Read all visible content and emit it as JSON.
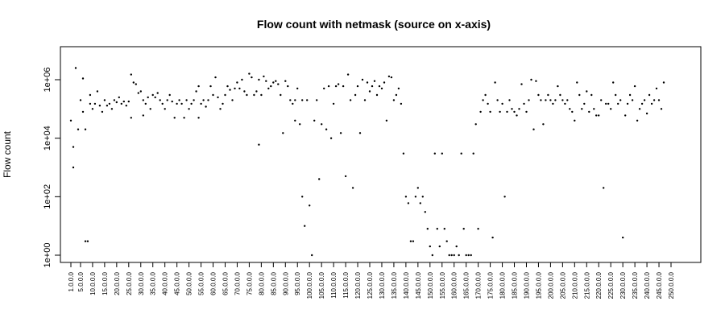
{
  "chart_data": {
    "type": "scatter",
    "title": "Flow count with netmask  (source on x-axis)",
    "xlabel": "",
    "ylabel": "Flow count",
    "y_scale": "log10",
    "ylim": [
      1,
      3000000
    ],
    "xlim": [
      0,
      255
    ],
    "x_ticks": [
      1,
      5,
      10,
      15,
      20,
      25,
      30,
      35,
      40,
      45,
      50,
      55,
      60,
      65,
      70,
      75,
      80,
      85,
      90,
      95,
      100,
      105,
      110,
      115,
      120,
      125,
      130,
      135,
      140,
      145,
      150,
      155,
      160,
      165,
      170,
      175,
      180,
      185,
      190,
      195,
      200,
      205,
      210,
      215,
      220,
      225,
      230,
      235,
      240,
      245,
      250
    ],
    "x_tick_labels": [
      "1.0.0.0",
      "5.0.0.0",
      "10.0.0.0",
      "15.0.0.0",
      "20.0.0.0",
      "25.0.0.0",
      "30.0.0.0",
      "35.0.0.0",
      "40.0.0.0",
      "45.0.0.0",
      "50.0.0.0",
      "55.0.0.0",
      "60.0.0.0",
      "65.0.0.0",
      "70.0.0.0",
      "75.0.0.0",
      "80.0.0.0",
      "85.0.0.0",
      "90.0.0.0",
      "95.0.0.0",
      "100.0.0.0",
      "105.0.0.0",
      "110.0.0.0",
      "115.0.0.0",
      "120.0.0.0",
      "125.0.0.0",
      "130.0.0.0",
      "135.0.0.0",
      "140.0.0.0",
      "145.0.0.0",
      "150.0.0.0",
      "155.0.0.0",
      "160.0.0.0",
      "165.0.0.0",
      "170.0.0.0",
      "175.0.0.0",
      "180.0.0.0",
      "185.0.0.0",
      "190.0.0.0",
      "195.0.0.0",
      "200.0.0.0",
      "205.0.0.0",
      "210.0.0.0",
      "215.0.0.0",
      "220.0.0.0",
      "225.0.0.0",
      "230.0.0.0",
      "235.0.0.0",
      "240.0.0.0",
      "245.0.0.0",
      "250.0.0.0"
    ],
    "y_ticks": [
      1,
      100,
      10000,
      1000000
    ],
    "y_tick_labels": [
      "1e+00",
      "1e+02",
      "1e+04",
      "1e+06"
    ],
    "grid": false,
    "series": [
      {
        "values": [
          [
            1,
            40000
          ],
          [
            2,
            5000
          ],
          [
            2,
            1000
          ],
          [
            3,
            2500000
          ],
          [
            4,
            20000
          ],
          [
            5,
            200000
          ],
          [
            6,
            80000
          ],
          [
            6,
            1100000
          ],
          [
            7,
            20000
          ],
          [
            7,
            3
          ],
          [
            8,
            3
          ],
          [
            9,
            300000
          ],
          [
            9,
            150000
          ],
          [
            10,
            100000
          ],
          [
            11,
            150000
          ],
          [
            12,
            400000
          ],
          [
            13,
            130000
          ],
          [
            14,
            80000
          ],
          [
            15,
            200000
          ],
          [
            16,
            130000
          ],
          [
            17,
            150000
          ],
          [
            18,
            100000
          ],
          [
            19,
            200000
          ],
          [
            20,
            170000
          ],
          [
            21,
            250000
          ],
          [
            22,
            150000
          ],
          [
            23,
            180000
          ],
          [
            24,
            130000
          ],
          [
            25,
            180000
          ],
          [
            26,
            1500000
          ],
          [
            26,
            50000
          ],
          [
            27,
            800000
          ],
          [
            28,
            700000
          ],
          [
            29,
            350000
          ],
          [
            30,
            400000
          ],
          [
            31,
            200000
          ],
          [
            31,
            60000
          ],
          [
            32,
            150000
          ],
          [
            33,
            250000
          ],
          [
            34,
            100000
          ],
          [
            35,
            300000
          ],
          [
            36,
            250000
          ],
          [
            37,
            350000
          ],
          [
            38,
            200000
          ],
          [
            39,
            150000
          ],
          [
            40,
            100000
          ],
          [
            41,
            200000
          ],
          [
            42,
            300000
          ],
          [
            43,
            180000
          ],
          [
            44,
            50000
          ],
          [
            45,
            150000
          ],
          [
            46,
            200000
          ],
          [
            47,
            150000
          ],
          [
            48,
            50000
          ],
          [
            49,
            200000
          ],
          [
            50,
            100000
          ],
          [
            51,
            150000
          ],
          [
            52,
            200000
          ],
          [
            53,
            400000
          ],
          [
            54,
            600000
          ],
          [
            54,
            50000
          ],
          [
            55,
            150000
          ],
          [
            56,
            200000
          ],
          [
            57,
            120000
          ],
          [
            58,
            200000
          ],
          [
            59,
            600000
          ],
          [
            60,
            300000
          ],
          [
            61,
            1200000
          ],
          [
            62,
            250000
          ],
          [
            63,
            100000
          ],
          [
            64,
            150000
          ],
          [
            65,
            300000
          ],
          [
            66,
            600000
          ],
          [
            67,
            450000
          ],
          [
            68,
            200000
          ],
          [
            69,
            500000
          ],
          [
            70,
            800000
          ],
          [
            71,
            500000
          ],
          [
            72,
            1000000
          ],
          [
            73,
            400000
          ],
          [
            74,
            300000
          ],
          [
            75,
            1600000
          ],
          [
            76,
            1200000
          ],
          [
            77,
            300000
          ],
          [
            78,
            400000
          ],
          [
            79,
            1000000
          ],
          [
            79,
            6000
          ],
          [
            80,
            300000
          ],
          [
            81,
            1300000
          ],
          [
            82,
            900000
          ],
          [
            83,
            500000
          ],
          [
            84,
            600000
          ],
          [
            85,
            800000
          ],
          [
            86,
            900000
          ],
          [
            87,
            700000
          ],
          [
            88,
            300000
          ],
          [
            89,
            15000
          ],
          [
            90,
            900000
          ],
          [
            91,
            600000
          ],
          [
            92,
            200000
          ],
          [
            93,
            150000
          ],
          [
            94,
            200000
          ],
          [
            94,
            40000
          ],
          [
            95,
            500000
          ],
          [
            96,
            30000
          ],
          [
            97,
            200000
          ],
          [
            97,
            100
          ],
          [
            98,
            10
          ],
          [
            99,
            200000
          ],
          [
            100,
            50
          ],
          [
            101,
            1
          ],
          [
            102,
            40000
          ],
          [
            103,
            200000
          ],
          [
            104,
            400
          ],
          [
            105,
            30000
          ],
          [
            106,
            500000
          ],
          [
            107,
            20000
          ],
          [
            108,
            600000
          ],
          [
            109,
            10000
          ],
          [
            110,
            150000
          ],
          [
            111,
            600000
          ],
          [
            112,
            700000
          ],
          [
            113,
            15000
          ],
          [
            114,
            600000
          ],
          [
            115,
            500
          ],
          [
            116,
            1500000
          ],
          [
            117,
            200000
          ],
          [
            118,
            200
          ],
          [
            119,
            300000
          ],
          [
            120,
            600000
          ],
          [
            121,
            15000
          ],
          [
            122,
            1000000
          ],
          [
            123,
            200000
          ],
          [
            124,
            800000
          ],
          [
            125,
            400000
          ],
          [
            126,
            600000
          ],
          [
            127,
            900000
          ],
          [
            128,
            300000
          ],
          [
            129,
            600000
          ],
          [
            130,
            500000
          ],
          [
            131,
            800000
          ],
          [
            132,
            40000
          ],
          [
            133,
            1300000
          ],
          [
            134,
            1200000
          ],
          [
            135,
            200000
          ],
          [
            136,
            300000
          ],
          [
            137,
            500000
          ],
          [
            138,
            150000
          ],
          [
            139,
            3000
          ],
          [
            140,
            100
          ],
          [
            141,
            60
          ],
          [
            142,
            3
          ],
          [
            143,
            3
          ],
          [
            144,
            100
          ],
          [
            145,
            200
          ],
          [
            146,
            60
          ],
          [
            147,
            100
          ],
          [
            148,
            30
          ],
          [
            149,
            8
          ],
          [
            150,
            2
          ],
          [
            151,
            1
          ],
          [
            152,
            3000
          ],
          [
            153,
            8
          ],
          [
            154,
            2
          ],
          [
            155,
            3000
          ],
          [
            156,
            8
          ],
          [
            157,
            3
          ],
          [
            158,
            1
          ],
          [
            159,
            1
          ],
          [
            160,
            1
          ],
          [
            161,
            2
          ],
          [
            162,
            1
          ],
          [
            163,
            3000
          ],
          [
            164,
            8
          ],
          [
            165,
            1
          ],
          [
            166,
            1
          ],
          [
            167,
            1
          ],
          [
            168,
            3000
          ],
          [
            169,
            30000
          ],
          [
            170,
            8
          ],
          [
            171,
            80000
          ],
          [
            172,
            200000
          ],
          [
            173,
            300000
          ],
          [
            174,
            150000
          ],
          [
            175,
            80000
          ],
          [
            176,
            4
          ],
          [
            177,
            800000
          ],
          [
            178,
            200000
          ],
          [
            179,
            80000
          ],
          [
            180,
            150000
          ],
          [
            181,
            100
          ],
          [
            182,
            80000
          ],
          [
            183,
            200000
          ],
          [
            184,
            100000
          ],
          [
            185,
            80000
          ],
          [
            186,
            60000
          ],
          [
            187,
            100000
          ],
          [
            188,
            700000
          ],
          [
            189,
            150000
          ],
          [
            190,
            80000
          ],
          [
            191,
            200000
          ],
          [
            192,
            1000000
          ],
          [
            193,
            20000
          ],
          [
            194,
            900000
          ],
          [
            195,
            300000
          ],
          [
            196,
            200000
          ],
          [
            197,
            30000
          ],
          [
            198,
            200000
          ],
          [
            199,
            300000
          ],
          [
            200,
            200000
          ],
          [
            201,
            150000
          ],
          [
            202,
            200000
          ],
          [
            203,
            600000
          ],
          [
            204,
            300000
          ],
          [
            205,
            200000
          ],
          [
            206,
            150000
          ],
          [
            207,
            200000
          ],
          [
            208,
            100000
          ],
          [
            209,
            80000
          ],
          [
            210,
            40000
          ],
          [
            211,
            800000
          ],
          [
            212,
            300000
          ],
          [
            213,
            100000
          ],
          [
            214,
            150000
          ],
          [
            215,
            400000
          ],
          [
            216,
            80000
          ],
          [
            217,
            300000
          ],
          [
            218,
            100000
          ],
          [
            219,
            60000
          ],
          [
            220,
            60000
          ],
          [
            221,
            200000
          ],
          [
            222,
            200
          ],
          [
            223,
            150000
          ],
          [
            224,
            150000
          ],
          [
            225,
            100000
          ],
          [
            226,
            800000
          ],
          [
            227,
            300000
          ],
          [
            228,
            150000
          ],
          [
            229,
            200000
          ],
          [
            230,
            4
          ],
          [
            231,
            60000
          ],
          [
            232,
            150000
          ],
          [
            233,
            300000
          ],
          [
            234,
            200000
          ],
          [
            235,
            600000
          ],
          [
            236,
            40000
          ],
          [
            237,
            100000
          ],
          [
            238,
            150000
          ],
          [
            239,
            200000
          ],
          [
            240,
            70000
          ],
          [
            241,
            300000
          ],
          [
            242,
            150000
          ],
          [
            243,
            200000
          ],
          [
            244,
            500000
          ],
          [
            245,
            200000
          ],
          [
            246,
            100000
          ],
          [
            247,
            800000
          ]
        ]
      }
    ]
  }
}
